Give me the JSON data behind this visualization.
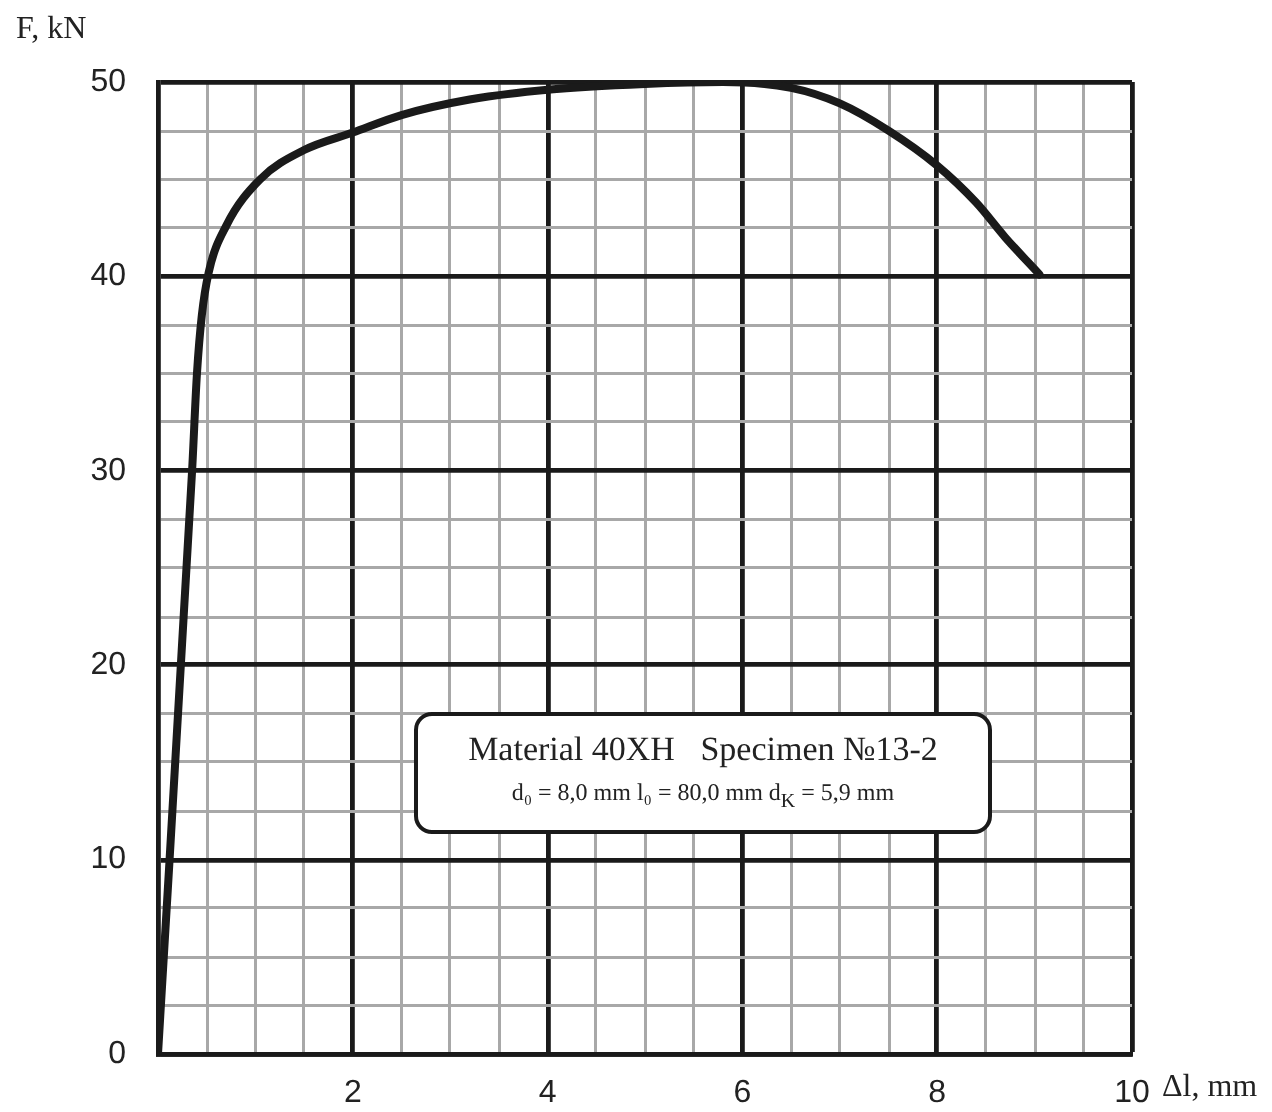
{
  "chart_data": {
    "type": "line",
    "xlabel": "Δl, mm",
    "ylabel": "F, kN",
    "xlim": [
      0,
      10
    ],
    "ylim": [
      0,
      50
    ],
    "xticks": [
      {
        "value": 0,
        "label": null
      },
      {
        "value": 0.5,
        "label": null
      },
      {
        "value": 1,
        "label": null
      },
      {
        "value": 1.5,
        "label": null
      },
      2,
      {
        "value": 2.5,
        "label": null
      },
      {
        "value": 3,
        "label": null
      },
      {
        "value": 3.5,
        "label": null
      },
      4,
      {
        "value": 4.5,
        "label": null
      },
      {
        "value": 5,
        "label": null
      },
      {
        "value": 5.5,
        "label": null
      },
      6,
      {
        "value": 6.5,
        "label": null
      },
      {
        "value": 7,
        "label": null
      },
      {
        "value": 7.5,
        "label": null
      },
      8,
      {
        "value": 8.5,
        "label": null
      },
      {
        "value": 9,
        "label": null
      },
      {
        "value": 9.5,
        "label": null
      },
      10
    ],
    "yticks": [
      0,
      {
        "value": 2.5,
        "label": null
      },
      {
        "value": 5,
        "label": null
      },
      {
        "value": 7.5,
        "label": null
      },
      10,
      {
        "value": 12.5,
        "label": null
      },
      {
        "value": 15,
        "label": null
      },
      {
        "value": 17.5,
        "label": null
      },
      20,
      {
        "value": 22.5,
        "label": null
      },
      {
        "value": 25,
        "label": null
      },
      {
        "value": 27.5,
        "label": null
      },
      30,
      {
        "value": 32.5,
        "label": null
      },
      {
        "value": 35,
        "label": null
      },
      {
        "value": 37.5,
        "label": null
      },
      40,
      {
        "value": 42.5,
        "label": null
      },
      {
        "value": 45,
        "label": null
      },
      {
        "value": 47.5,
        "label": null
      },
      50
    ],
    "grid": true,
    "marker": "none",
    "x": [
      0,
      0.35,
      0.4,
      0.45,
      0.52,
      0.7,
      1.05,
      1.5,
      2,
      2.5,
      3.2,
      4,
      5,
      5.8,
      6.5,
      7,
      7.5,
      8,
      8.4,
      8.7,
      9.05
    ],
    "series": [
      {
        "color": "#1a1a1a",
        "values": [
          0,
          30,
          35,
          38,
          40.2,
          42.6,
          45,
          46.5,
          47.4,
          48.3,
          49.1,
          49.6,
          49.9,
          50,
          49.7,
          48.9,
          47.5,
          45.7,
          43.8,
          42,
          40.1
        ]
      }
    ],
    "annotations": [
      "Material 40XH   Specimen №13-2",
      "d₀ = 8,0 mm l₀ = 80,0 mm d$_{K}$ = 5,9 mm"
    ]
  }
}
